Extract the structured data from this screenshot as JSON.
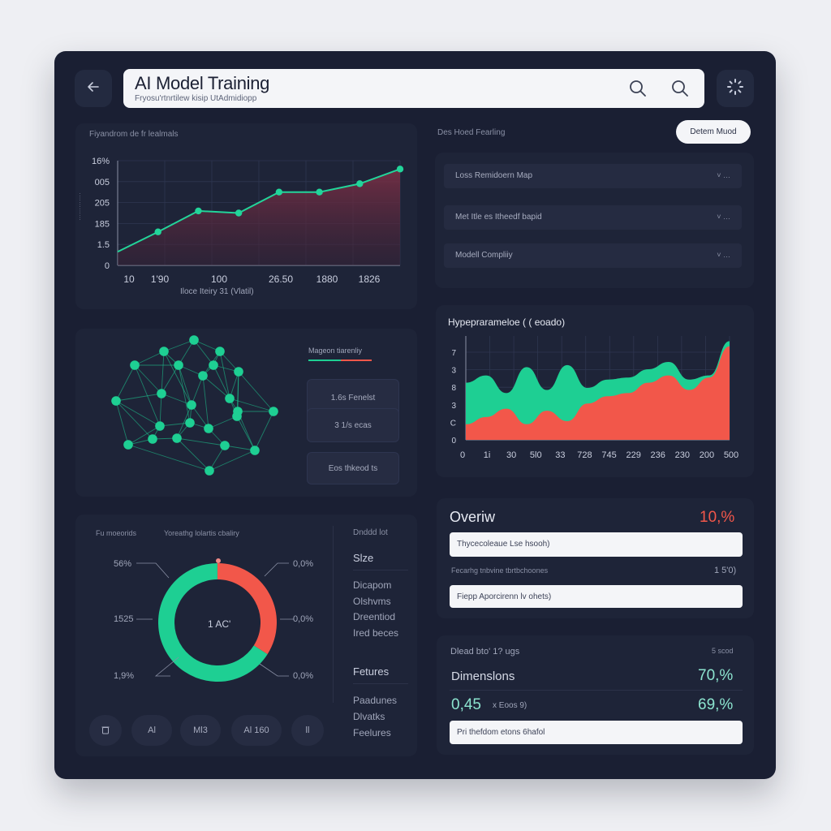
{
  "header": {
    "title": "AI Model Training",
    "subtitle": "Fryosu'rtnrtilew kisip UtAdmidiopp",
    "back_icon": "arrow-left-icon",
    "search_icon": "search-icon",
    "settings_icon": "loading-spinner-icon"
  },
  "top_left": {
    "label": "Fiyandrom de fr lealmals",
    "axis_label": "Iloce Iteiry 31 (Vlatil)"
  },
  "top_right": {
    "label": "Des Hoed Fearling",
    "button": "Detem Muod",
    "rows": [
      {
        "label": "Loss Remidoern Map",
        "arrow": "˅ …"
      },
      {
        "label": "Met Itle es Itheedf bapid",
        "arrow": "˅ …"
      },
      {
        "label": "Modell Compliiy",
        "arrow": "˅ …"
      }
    ]
  },
  "network": {
    "legend_title": "Mageon tiarenliy",
    "legend_items": [
      "1.6s  Fenelst",
      "3 1/s  ecas",
      "Eos  thkeod ts"
    ]
  },
  "hyper": {
    "title": "Hypeprarameloe ( ( eoado)"
  },
  "overview": {
    "title": "Overiw",
    "value": "10,%",
    "field1": "Thycecoleaue Lse hsooh)",
    "label2": "Fecarhg tnbvine tbrtbchoones",
    "value2": "1  5'0)",
    "field2": "Fiepp Aporcirenn lv ohets)"
  },
  "dimensions": {
    "label": "Dlead bto' 1? ugs",
    "label_right": "5 scod",
    "title": "Dimenslons",
    "value": "70,%",
    "metric": "0,45",
    "metric_unit": "x  Eoos 9)",
    "metric_value": "69,%",
    "field": "Pri thefdom etons 6hafol"
  },
  "donut_panel": {
    "label1": "Fu moeorids",
    "label2": "Yoreathg lolartis cbaliry",
    "center": "1 AC'",
    "callouts": [
      "56%",
      "1525",
      "1,9%",
      "0,0%",
      "0,0%",
      "0,0%"
    ],
    "pills": [
      "",
      "Al",
      "Ml3",
      "Al 160",
      "ll"
    ],
    "side_header": "Dnddd lot",
    "side_title": "Slze",
    "side_items": [
      "Dicapom",
      "Olshvms",
      "Dreentiod",
      "Ired beces"
    ],
    "features_title": "Fetures",
    "features_items": [
      "Paadunes",
      "Dlvatks",
      "Feelures"
    ]
  },
  "colors": {
    "teal": "#1ecf93",
    "coral": "#f2574a",
    "frame": "#1a1f33",
    "panel": "#1e2438"
  },
  "chart_data": [
    {
      "type": "line",
      "title": "",
      "xlabel": "Iloce Iteiry 31 (Vlatil)",
      "ylabel": "",
      "y_tick_labels": [
        "16%",
        "005",
        "205",
        "185",
        "1.5",
        "0"
      ],
      "x_tick_labels": [
        "10",
        "1'90",
        "100",
        "26.50",
        "1880",
        "1826"
      ],
      "x": [
        0,
        1,
        2,
        3,
        4,
        5,
        6,
        7
      ],
      "values": [
        0.13,
        0.32,
        0.52,
        0.5,
        0.7,
        0.7,
        0.78,
        0.92
      ],
      "ylim": [
        0,
        1
      ],
      "fill": true
    },
    {
      "type": "area",
      "title": "Hypeprarameloe ( ( eoado)",
      "x_tick_labels": [
        "0",
        "1i",
        "30",
        "5l0",
        "33",
        "728",
        "745",
        "229",
        "236",
        "230",
        "200",
        "500"
      ],
      "y_tick_labels": [
        "7",
        "3",
        "8",
        "3",
        "C",
        "0"
      ],
      "ylim": [
        0,
        1
      ],
      "series": [
        {
          "color": "#1ecf93",
          "values": [
            0.55,
            0.62,
            0.45,
            0.7,
            0.48,
            0.72,
            0.5,
            0.58,
            0.6,
            0.68,
            0.75,
            0.58,
            0.62,
            0.95
          ]
        },
        {
          "color": "#f2574a",
          "values": [
            0.15,
            0.22,
            0.3,
            0.15,
            0.28,
            0.18,
            0.35,
            0.42,
            0.45,
            0.55,
            0.62,
            0.48,
            0.6,
            0.9
          ]
        }
      ]
    },
    {
      "type": "pie",
      "title": "",
      "categories": [
        "teal",
        "coral"
      ],
      "values": [
        66,
        34
      ]
    }
  ]
}
